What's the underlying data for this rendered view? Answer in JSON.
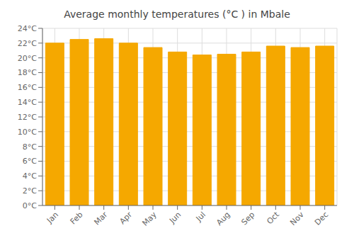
{
  "chart_data": {
    "type": "bar",
    "title": "Average monthly temperatures (°C ) in Mbale",
    "categories": [
      "Jan",
      "Feb",
      "Mar",
      "Apr",
      "May",
      "Jun",
      "Jul",
      "Aug",
      "Sep",
      "Oct",
      "Nov",
      "Dec"
    ],
    "values": [
      22.0,
      22.5,
      22.6,
      22.0,
      21.4,
      20.8,
      20.4,
      20.5,
      20.8,
      21.6,
      21.4,
      21.6
    ],
    "color": "#F5A800",
    "ylim": [
      0,
      24
    ],
    "yticks": [
      {
        "value": 0,
        "label": "0°C"
      },
      {
        "value": 2,
        "label": "2°C"
      },
      {
        "value": 4,
        "label": "4°C"
      },
      {
        "value": 6,
        "label": "6°C"
      },
      {
        "value": 8,
        "label": "8°C"
      },
      {
        "value": 10,
        "label": "10°C"
      },
      {
        "value": 12,
        "label": "12°C"
      },
      {
        "value": 14,
        "label": "14°C"
      },
      {
        "value": 16,
        "label": "16°C"
      },
      {
        "value": 18,
        "label": "18°C"
      },
      {
        "value": 20,
        "label": "20°C"
      },
      {
        "value": 22,
        "label": "22°C"
      },
      {
        "value": 24,
        "label": "24°C"
      }
    ],
    "grid": true
  }
}
